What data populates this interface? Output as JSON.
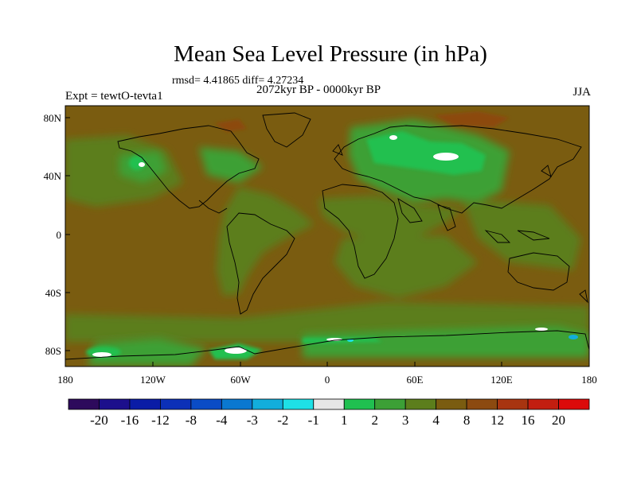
{
  "title": "Mean Sea Level Pressure (in hPa)",
  "stats": "rmsd= 4.41865 diff= 4.27234",
  "subtitle": "2072kyr BP - 0000kyr BP",
  "left_label": "Expt = tewtO-tevta1",
  "right_label": "JJA",
  "map": {
    "projection": "cylindrical-equidistant",
    "lon_range": [
      -180,
      180
    ],
    "lat_range": [
      -90,
      90
    ],
    "x_ticks": [
      "180",
      "120W",
      "60W",
      "0",
      "60E",
      "120E",
      "180"
    ],
    "y_ticks": [
      "80N",
      "40N",
      "0",
      "40S",
      "80S"
    ],
    "background_color": "#7a5c10",
    "coastline_color": "#000000"
  },
  "colorbar": {
    "labels": [
      "-20",
      "-16",
      "-12",
      "-8",
      "-4",
      "-3",
      "-2",
      "-1",
      "1",
      "2",
      "3",
      "4",
      "8",
      "12",
      "16",
      "20"
    ],
    "colors": [
      "#2d0a5c",
      "#1c0f8c",
      "#0a1ca6",
      "#0c30b8",
      "#0a4cc6",
      "#0a78d0",
      "#12aedc",
      "#1ee0e6",
      "#e6e6e6",
      "#20c050",
      "#3ca036",
      "#5c7e1c",
      "#7a5c10",
      "#8c4a10",
      "#a83410",
      "#c21e10",
      "#dc0a0a"
    ]
  }
}
